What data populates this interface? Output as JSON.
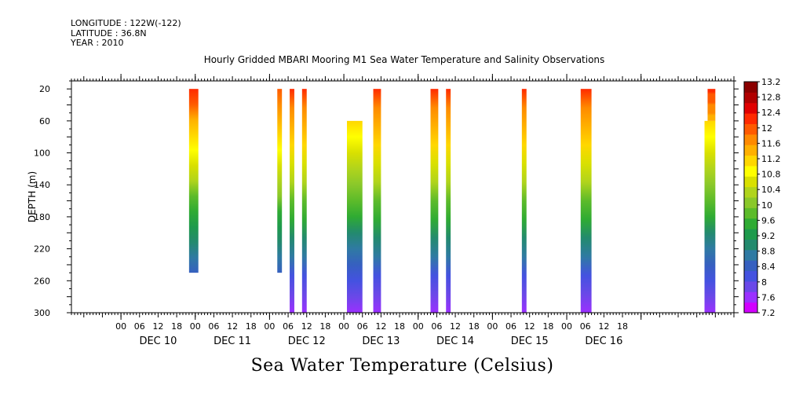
{
  "meta": {
    "longitude": "LONGITUDE : 122W(-122)",
    "latitude": "LATITUDE : 36.8N",
    "year": "YEAR : 2010"
  },
  "chart_data": {
    "type": "heatmap",
    "title": "Hourly Gridded MBARI Mooring M1 Sea Water Temperature and Salinity Observations",
    "xlabel": "",
    "ylabel": "DEPTH (m)",
    "colorbar_label": "Sea Water Temperature (Celsius)",
    "x_unit": "hours since 2010-12-10 00:00",
    "xlim": [
      -16,
      198
    ],
    "ylim": [
      300,
      10
    ],
    "y_ticks": [
      20,
      60,
      100,
      140,
      180,
      220,
      260,
      300
    ],
    "hour_ticks": [
      "00",
      "06",
      "12",
      "18",
      "00",
      "06",
      "12",
      "18",
      "00",
      "06",
      "12",
      "18",
      "00",
      "06",
      "12",
      "18",
      "00",
      "06",
      "12",
      "18",
      "00",
      "06",
      "12",
      "18",
      "00",
      "06",
      "12",
      "18"
    ],
    "day_labels": [
      "DEC 10",
      "DEC 11",
      "DEC 12",
      "DEC 13",
      "DEC 14",
      "DEC 15",
      "DEC 16"
    ],
    "grid": false,
    "colorbar_levels": [
      "13.2",
      "12.8",
      "12.4",
      "12",
      "11.6",
      "11.2",
      "10.8",
      "10.4",
      "10",
      "9.6",
      "9.2",
      "8.8",
      "8.4",
      "8",
      "7.6",
      "7.2"
    ],
    "colorbar_range": [
      7.2,
      13.2
    ],
    "palette": [
      "#d200ff",
      "#9b30ff",
      "#6a48e8",
      "#4452e0",
      "#3660c0",
      "#2f7aa3",
      "#238a6e",
      "#1e9a4c",
      "#2fab33",
      "#5cbb2a",
      "#8ac82a",
      "#b0d41c",
      "#d9e000",
      "#ffff00",
      "#ffd700",
      "#ffb000",
      "#ff8a00",
      "#ff5a00",
      "#ff2a00",
      "#e00000",
      "#b00000",
      "#8a0000"
    ],
    "profiles": [
      {
        "start": 22,
        "end": 25,
        "depth_top": 20,
        "depth_bottom": 250,
        "temp_top": 12.2,
        "temp_bottom": 8.3
      },
      {
        "start": 50.5,
        "end": 52,
        "depth_top": 20,
        "depth_bottom": 250,
        "temp_top": 12.1,
        "temp_bottom": 8.4
      },
      {
        "start": 54.5,
        "end": 56,
        "depth_top": 20,
        "depth_bottom": 300,
        "temp_top": 12.2,
        "temp_bottom": 7.5
      },
      {
        "start": 58.5,
        "end": 60,
        "depth_top": 20,
        "depth_bottom": 300,
        "temp_top": 12.2,
        "temp_bottom": 7.5
      },
      {
        "start": 73,
        "end": 78,
        "depth_top": 60,
        "depth_bottom": 300,
        "temp_top": 11.2,
        "temp_bottom": 7.6
      },
      {
        "start": 81.5,
        "end": 84,
        "depth_top": 20,
        "depth_bottom": 300,
        "temp_top": 12.2,
        "temp_bottom": 7.5
      },
      {
        "start": 100,
        "end": 102.5,
        "depth_top": 20,
        "depth_bottom": 300,
        "temp_top": 12.2,
        "temp_bottom": 7.5
      },
      {
        "start": 105,
        "end": 106.5,
        "depth_top": 20,
        "depth_bottom": 300,
        "temp_top": 12.2,
        "temp_bottom": 7.5
      },
      {
        "start": 129.5,
        "end": 131,
        "depth_top": 20,
        "depth_bottom": 300,
        "temp_top": 12.2,
        "temp_bottom": 7.5
      },
      {
        "start": 148.5,
        "end": 152,
        "depth_top": 20,
        "depth_bottom": 300,
        "temp_top": 12.2,
        "temp_bottom": 7.5
      },
      {
        "start": 188.5,
        "end": 192,
        "depth_top": 60,
        "depth_bottom": 300,
        "temp_top": 11.2,
        "temp_bottom": 7.6
      },
      {
        "start": 189.5,
        "end": 192,
        "depth_top": 20,
        "depth_bottom": 60,
        "temp_top": 12.2,
        "temp_bottom": 11.4
      }
    ]
  }
}
